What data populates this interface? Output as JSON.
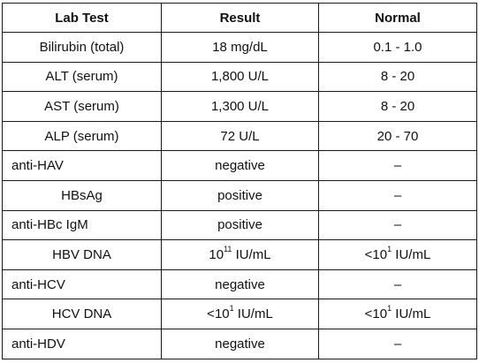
{
  "headers": {
    "test": "Lab Test",
    "result": "Result",
    "normal": "Normal"
  },
  "rows": [
    {
      "test": "Bilirubin (total)",
      "result": "18 mg/dL",
      "normal": "0.1 - 1.0",
      "test_align": "center"
    },
    {
      "test": "ALT (serum)",
      "result": "1,800 U/L",
      "normal": "8 - 20",
      "test_align": "center"
    },
    {
      "test": "AST (serum)",
      "result": "1,300 U/L",
      "normal": "8 - 20",
      "test_align": "center"
    },
    {
      "test": "ALP (serum)",
      "result": "72 U/L",
      "normal": "20 - 70",
      "test_align": "center"
    },
    {
      "test": "anti-HAV",
      "result": "negative",
      "normal": "–",
      "test_align": "left"
    },
    {
      "test": "HBsAg",
      "result": "positive",
      "normal": "–",
      "test_align": "center"
    },
    {
      "test": "anti-HBc IgM",
      "result": "positive",
      "normal": "–",
      "test_align": "left"
    },
    {
      "test": "HBV DNA",
      "result": {
        "pre": "",
        "base": "10",
        "exp": "11",
        "unit": " IU/mL"
      },
      "normal": "<10¹ IU/mL",
      "test_align": "center"
    },
    {
      "test": "anti-HCV",
      "result": "negative",
      "normal": "–",
      "test_align": "left"
    },
    {
      "test": "HCV DNA",
      "result": {
        "pre": "<",
        "base": "10",
        "exp": "1",
        "unit": " IU/mL"
      },
      "normal": "<10¹ IU/mL",
      "test_align": "center"
    },
    {
      "test": "anti-HDV",
      "result": "negative",
      "normal": "–",
      "test_align": "left"
    }
  ]
}
